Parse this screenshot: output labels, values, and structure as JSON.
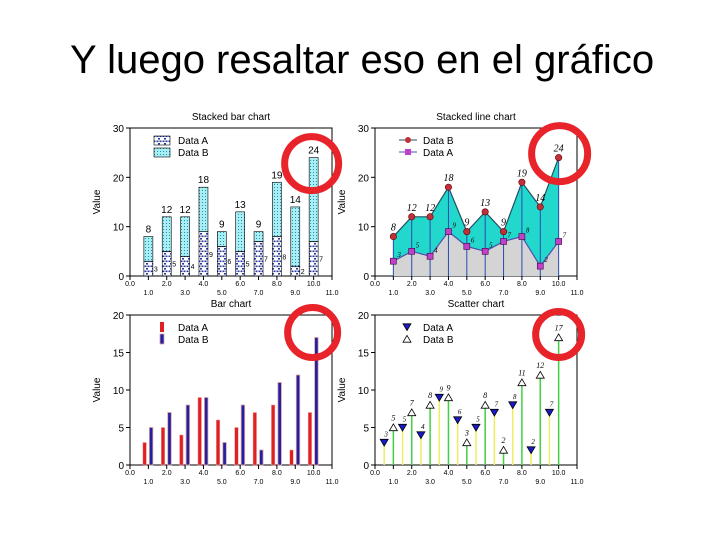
{
  "slide": {
    "title": "Y luego resaltar eso en el gráfico"
  },
  "highlight_color": "#e8232a",
  "chart_data": [
    {
      "type": "bar",
      "stacked": true,
      "title": "Stacked bar chart",
      "xlabel": "",
      "ylabel": "Value",
      "ylim": [
        0,
        30
      ],
      "yticks": [
        0,
        10,
        20,
        30
      ],
      "xlim": [
        0,
        11
      ],
      "xticks_upper": [
        "0.0",
        "2.0",
        "4.0",
        "6.0",
        "8.0",
        "10.0"
      ],
      "xticks_lower": [
        "1.0",
        "3.0",
        "5.0",
        "7.0",
        "9.0",
        "11.0"
      ],
      "x": [
        1,
        2,
        3,
        4,
        5,
        6,
        7,
        8,
        9,
        10
      ],
      "series": [
        {
          "name": "Data A",
          "values": [
            3,
            5,
            4,
            9,
            6,
            5,
            7,
            8,
            2,
            7
          ],
          "color": "#6b7fb8"
        },
        {
          "name": "Data B",
          "values": [
            5,
            7,
            8,
            9,
            3,
            8,
            2,
            11,
            12,
            17
          ],
          "color": "#9ee6ee"
        }
      ],
      "totals": [
        8,
        12,
        12,
        18,
        9,
        13,
        9,
        19,
        14,
        24
      ],
      "legend": "top-left",
      "highlighted": "24"
    },
    {
      "type": "area",
      "stacked": true,
      "title": "Stacked line chart",
      "ylabel": "Value",
      "ylim": [
        0,
        30
      ],
      "yticks": [
        0,
        10,
        20,
        30
      ],
      "xlim": [
        0,
        11
      ],
      "xticks_upper": [
        "0.0",
        "2.0",
        "4.0",
        "6.0",
        "8.0",
        "10.0"
      ],
      "xticks_lower": [
        "1.0",
        "3.0",
        "5.0",
        "7.0",
        "9.0",
        "11.0"
      ],
      "x": [
        1,
        2,
        3,
        4,
        5,
        6,
        7,
        8,
        9,
        10
      ],
      "series": [
        {
          "name": "Data B",
          "values": [
            8,
            12,
            12,
            18,
            9,
            13,
            9,
            19,
            14,
            24
          ],
          "color": "#c0303a",
          "fill": "#22d8cc"
        },
        {
          "name": "Data A",
          "values": [
            3,
            5,
            4,
            9,
            6,
            5,
            7,
            8,
            2,
            7
          ],
          "color": "#c040c8",
          "fill": "#d4d4d4"
        }
      ],
      "labels_b": [
        "8",
        "12",
        "12",
        "18",
        "9",
        "13",
        "9",
        "19",
        "14",
        "24"
      ],
      "labels_a": [
        "3",
        "5",
        "4",
        "9",
        "6",
        "5",
        "7",
        "8",
        "2",
        "7"
      ],
      "legend": "top-left",
      "highlighted": "24"
    },
    {
      "type": "bar",
      "title": "Bar chart",
      "ylabel": "Value",
      "ylim": [
        0,
        20
      ],
      "yticks": [
        0,
        5,
        10,
        15,
        20
      ],
      "xlim": [
        0,
        11
      ],
      "xticks_upper": [
        "0.0",
        "2.0",
        "4.0",
        "6.0",
        "8.0",
        "10.0"
      ],
      "xticks_lower": [
        "1.0",
        "3.0",
        "5.0",
        "7.0",
        "9.0",
        "11.0"
      ],
      "x": [
        1,
        2,
        3,
        4,
        5,
        6,
        7,
        8,
        9,
        10
      ],
      "series": [
        {
          "name": "Data A",
          "values": [
            3,
            5,
            4,
            9,
            6,
            5,
            7,
            8,
            2,
            7
          ],
          "color": "#e02020"
        },
        {
          "name": "Data B",
          "values": [
            5,
            7,
            8,
            9,
            3,
            8,
            2,
            11,
            12,
            17
          ],
          "color": "#2020a0"
        }
      ],
      "legend": "top-left",
      "highlighted": "17"
    },
    {
      "type": "scatter",
      "title": "Scatter chart",
      "ylabel": "Value",
      "ylim": [
        0,
        20
      ],
      "yticks": [
        0,
        5,
        10,
        15,
        20
      ],
      "xlim": [
        0,
        11
      ],
      "xticks_upper": [
        "0.0",
        "2.0",
        "4.0",
        "6.0",
        "8.0",
        "10.0"
      ],
      "xticks_lower": [
        "1.0",
        "3.0",
        "5.0",
        "7.0",
        "9.0",
        "11.0"
      ],
      "series": [
        {
          "name": "Data A",
          "x": [
            0.5,
            1.5,
            2.5,
            3.5,
            4.5,
            5.5,
            6.5,
            7.5,
            8.5,
            9.5
          ],
          "values": [
            3,
            5,
            4,
            9,
            6,
            5,
            7,
            8,
            2,
            7
          ],
          "marker": "triangle-down",
          "color": "#1a1ac8",
          "stem": "#eeee60"
        },
        {
          "name": "Data B",
          "x": [
            1,
            2,
            3,
            4,
            5,
            6,
            7,
            8,
            9,
            10
          ],
          "values": [
            5,
            7,
            8,
            9,
            3,
            8,
            2,
            11,
            12,
            17
          ],
          "marker": "triangle-up",
          "color": "#ffffff",
          "stem": "#40d040"
        }
      ],
      "labels_a": [
        "3",
        "5",
        "4",
        "9",
        "6",
        "5",
        "7",
        "8",
        "2",
        "7"
      ],
      "labels_b": [
        "5",
        "7",
        "8",
        "9",
        "3",
        "8",
        "2",
        "11",
        "12",
        "17"
      ],
      "legend": "top-left",
      "highlighted": "17"
    }
  ]
}
